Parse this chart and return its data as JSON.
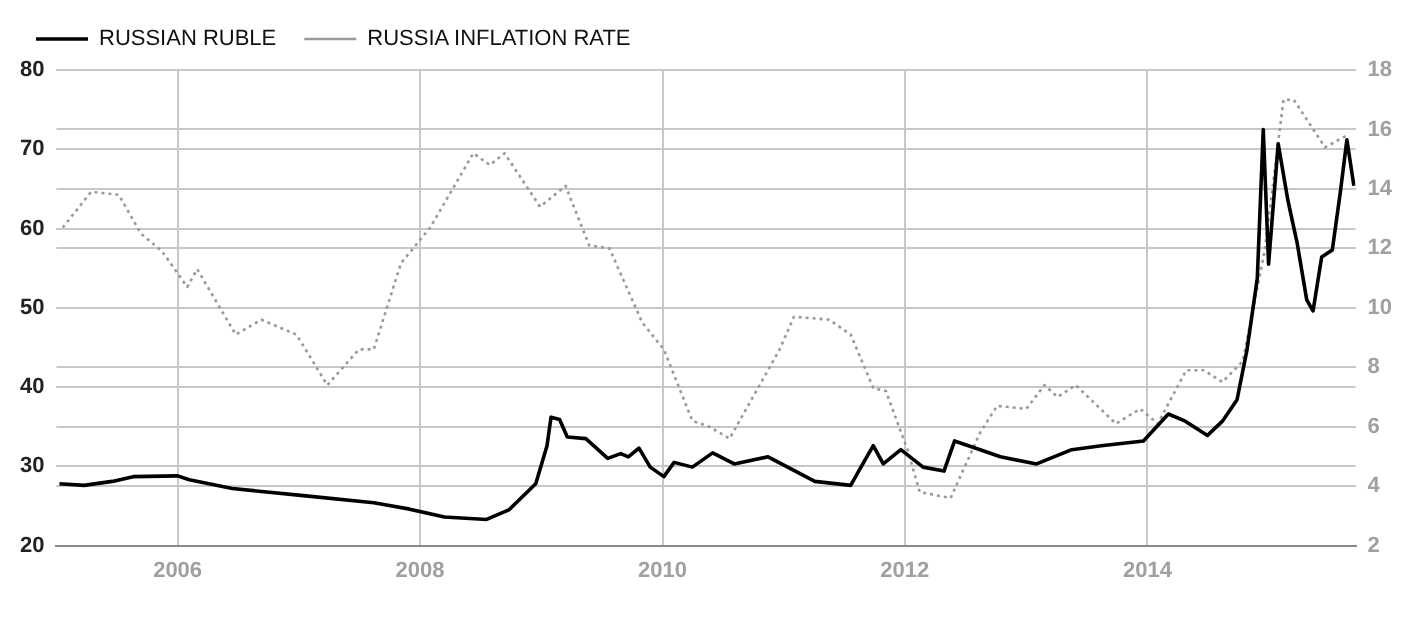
{
  "chart_data": {
    "type": "line",
    "legend": "top left",
    "grid": true,
    "xlim": [
      "2005-01-01",
      "2015-09-20"
    ],
    "xticks": [
      "2006",
      "2008",
      "2010",
      "2012",
      "2014"
    ],
    "ylim": [
      20,
      80
    ],
    "yticks": [
      20,
      30,
      40,
      50,
      60,
      70,
      80
    ],
    "y2lim": [
      2,
      18
    ],
    "y2ticks": [
      2,
      4,
      6,
      8,
      10,
      12,
      14,
      16,
      18
    ],
    "series": [
      {
        "name": "RUSSIAN RUBLE",
        "color": "#000000",
        "line_style": "solid",
        "x": [
          "2005-01-10",
          "2005-03-25",
          "2005-06-18",
          "2005-08-20",
          "2006-01-01",
          "2006-02-05",
          "2006-06-15",
          "2007-01-15",
          "2007-08-15",
          "2007-12-01",
          "2008-03-15",
          "2008-07-20",
          "2008-09-25",
          "2008-12-15",
          "2009-01-18",
          "2009-01-30",
          "2009-02-25",
          "2009-03-20",
          "2009-05-15",
          "2009-07-20",
          "2009-08-28",
          "2009-09-20",
          "2009-10-22",
          "2009-11-25",
          "2010-01-05",
          "2010-02-05",
          "2010-04-01",
          "2010-06-01",
          "2010-08-05",
          "2010-11-15",
          "2011-04-05",
          "2011-07-22",
          "2011-08-15",
          "2011-09-28",
          "2011-10-28",
          "2011-12-20",
          "2012-02-25",
          "2012-04-28",
          "2012-05-30",
          "2012-08-15",
          "2012-10-15",
          "2013-02-01",
          "2013-05-18",
          "2013-08-15",
          "2013-12-20",
          "2014-03-05",
          "2014-04-25",
          "2014-07-01",
          "2014-08-15",
          "2014-09-28",
          "2014-10-28",
          "2014-11-28",
          "2014-12-16",
          "2015-01-01",
          "2015-01-30",
          "2015-02-28",
          "2015-03-28",
          "2015-04-26",
          "2015-05-15",
          "2015-06-10",
          "2015-07-12",
          "2015-08-05",
          "2015-08-25",
          "2015-09-15"
        ],
        "values": [
          27.8,
          27.6,
          28.1,
          28.7,
          28.8,
          28.3,
          27.2,
          26.3,
          25.4,
          24.6,
          23.6,
          23.3,
          24.5,
          27.8,
          32.6,
          36.2,
          35.9,
          33.7,
          33.5,
          31.0,
          31.6,
          31.2,
          32.3,
          29.9,
          28.7,
          30.5,
          29.9,
          31.7,
          30.3,
          31.2,
          28.1,
          27.6,
          29.4,
          32.6,
          30.3,
          32.1,
          29.9,
          29.4,
          33.2,
          32.1,
          31.2,
          30.3,
          32.1,
          32.6,
          33.2,
          36.6,
          35.7,
          33.9,
          35.7,
          38.4,
          44.7,
          53.7,
          72.5,
          55.5,
          70.7,
          63.6,
          58.2,
          51.0,
          49.6,
          56.4,
          57.3,
          64.5,
          71.2,
          65.4
        ]
      },
      {
        "name": "RUSSIA INFLATION RATE",
        "color": "#999999",
        "line_style": "dotted",
        "axis": "y2",
        "x": [
          "2005-01-20",
          "2005-04-15",
          "2005-07-08",
          "2005-09-12",
          "2005-11-15",
          "2006-01-30",
          "2006-03-01",
          "2006-06-25",
          "2006-09-10",
          "2006-12-25",
          "2007-03-28",
          "2007-07-01",
          "2007-08-15",
          "2007-11-05",
          "2008-02-01",
          "2008-06-10",
          "2008-07-30",
          "2008-09-12",
          "2008-12-28",
          "2009-03-15",
          "2009-05-25",
          "2009-07-25",
          "2009-11-01",
          "2010-01-05",
          "2010-04-01",
          "2010-05-22",
          "2010-07-22",
          "2010-12-20",
          "2011-02-01",
          "2011-05-18",
          "2011-07-22",
          "2011-09-28",
          "2011-11-05",
          "2012-01-10",
          "2012-02-15",
          "2012-05-18",
          "2012-08-15",
          "2012-10-05",
          "2013-01-01",
          "2013-02-25",
          "2013-04-05",
          "2013-05-30",
          "2013-09-28",
          "2013-12-10",
          "2014-02-01",
          "2014-04-28",
          "2014-06-20",
          "2014-08-15",
          "2014-10-15",
          "2014-12-20",
          "2015-02-15",
          "2015-03-18",
          "2015-06-20",
          "2015-08-25"
        ],
        "values": [
          12.7,
          13.9,
          13.8,
          12.5,
          11.9,
          10.7,
          11.3,
          9.1,
          9.6,
          9.1,
          7.4,
          8.6,
          8.6,
          11.5,
          12.7,
          15.2,
          14.8,
          15.2,
          13.4,
          14.1,
          12.1,
          12.0,
          9.5,
          8.6,
          6.2,
          6.0,
          5.6,
          8.6,
          9.7,
          9.6,
          9.1,
          7.3,
          7.2,
          5.2,
          3.8,
          3.6,
          5.8,
          6.7,
          6.6,
          7.4,
          7.0,
          7.4,
          6.1,
          6.6,
          6.1,
          7.9,
          7.9,
          7.5,
          8.2,
          11.9,
          17.0,
          17.0,
          15.4,
          15.8
        ]
      }
    ]
  }
}
